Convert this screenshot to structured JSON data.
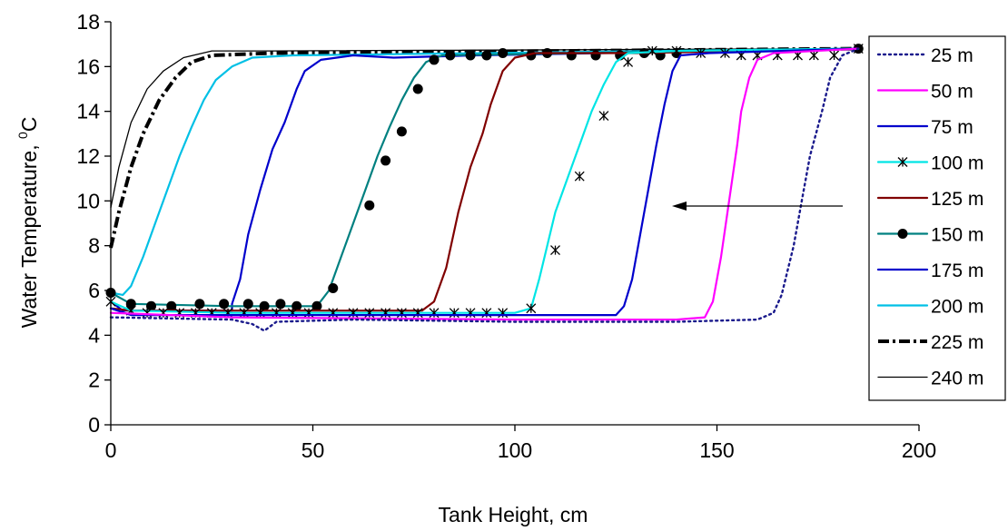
{
  "chart_data": {
    "type": "line",
    "title": "",
    "xlabel": "Tank Height, cm",
    "ylabel_main": "Water Temperature, ",
    "ylabel_sup": "0",
    "ylabel_unit": "C",
    "xlim": [
      0,
      200
    ],
    "ylim": [
      0,
      18
    ],
    "xticks": [
      "0",
      "50",
      "100",
      "150",
      "200"
    ],
    "yticks": [
      "0",
      "2",
      "4",
      "6",
      "8",
      "10",
      "12",
      "14",
      "16",
      "18"
    ],
    "grid": false,
    "legend_position": "right",
    "annotation": "arrow pointing left",
    "series": [
      {
        "name": "25 m",
        "color": "#1a1a8c",
        "dash": "dot",
        "marker": "none",
        "points": [
          [
            0,
            4.8
          ],
          [
            30,
            4.7
          ],
          [
            35,
            4.5
          ],
          [
            38,
            4.2
          ],
          [
            41,
            4.6
          ],
          [
            60,
            4.7
          ],
          [
            100,
            4.6
          ],
          [
            140,
            4.6
          ],
          [
            160,
            4.7
          ],
          [
            164,
            5.0
          ],
          [
            166,
            5.8
          ],
          [
            169,
            8
          ],
          [
            171,
            10
          ],
          [
            173,
            12
          ],
          [
            176,
            14
          ],
          [
            178,
            15.5
          ],
          [
            181,
            16.5
          ],
          [
            185,
            16.8
          ]
        ]
      },
      {
        "name": "50 m",
        "color": "#ff00ff",
        "dash": "solid",
        "marker": "none",
        "points": [
          [
            0,
            5.0
          ],
          [
            30,
            4.8
          ],
          [
            100,
            4.7
          ],
          [
            140,
            4.7
          ],
          [
            147,
            4.8
          ],
          [
            149,
            5.5
          ],
          [
            151,
            7.5
          ],
          [
            153,
            10
          ],
          [
            155,
            12.5
          ],
          [
            156,
            14
          ],
          [
            158,
            15.5
          ],
          [
            160,
            16.3
          ],
          [
            164,
            16.6
          ],
          [
            185,
            16.8
          ]
        ]
      },
      {
        "name": "75 m",
        "color": "#0000cc",
        "dash": "solid",
        "marker": "none",
        "points": [
          [
            0,
            5.2
          ],
          [
            5,
            4.9
          ],
          [
            30,
            4.9
          ],
          [
            80,
            4.9
          ],
          [
            110,
            4.9
          ],
          [
            125,
            4.9
          ],
          [
            127,
            5.3
          ],
          [
            129,
            6.5
          ],
          [
            131,
            8.5
          ],
          [
            133,
            10.5
          ],
          [
            135,
            12.5
          ],
          [
            137,
            14.3
          ],
          [
            139,
            15.8
          ],
          [
            141,
            16.5
          ],
          [
            148,
            16.6
          ],
          [
            185,
            16.8
          ]
        ]
      },
      {
        "name": "100 m",
        "color": "#00e5e5",
        "dash": "solid",
        "marker": "asterisk",
        "points": [
          [
            0,
            5.5
          ],
          [
            5,
            5.1
          ],
          [
            30,
            5.0
          ],
          [
            60,
            5.0
          ],
          [
            85,
            5.0
          ],
          [
            100,
            5.0
          ],
          [
            104,
            5.2
          ],
          [
            106,
            6.5
          ],
          [
            108,
            8
          ],
          [
            110,
            9.5
          ],
          [
            113,
            11
          ],
          [
            116,
            12.5
          ],
          [
            119,
            14
          ],
          [
            122,
            15.2
          ],
          [
            125,
            16.2
          ],
          [
            128,
            16.6
          ],
          [
            140,
            16.7
          ],
          [
            185,
            16.8
          ]
        ],
        "marker_points": [
          [
            0,
            5.5
          ],
          [
            5,
            5.1
          ],
          [
            9,
            5.0
          ],
          [
            13,
            5.0
          ],
          [
            17,
            5.0
          ],
          [
            21,
            5.0
          ],
          [
            25,
            5.0
          ],
          [
            29,
            5.0
          ],
          [
            33,
            5.0
          ],
          [
            37,
            5.0
          ],
          [
            41,
            5.0
          ],
          [
            45,
            5.0
          ],
          [
            49,
            5.0
          ],
          [
            55,
            5.0
          ],
          [
            60,
            5.0
          ],
          [
            64,
            5.0
          ],
          [
            68,
            5.0
          ],
          [
            72,
            5.0
          ],
          [
            76,
            5.0
          ],
          [
            80,
            5.0
          ],
          [
            85,
            5.0
          ],
          [
            89,
            5.0
          ],
          [
            93,
            5.0
          ],
          [
            97,
            5.0
          ],
          [
            104,
            5.2
          ],
          [
            110,
            7.8
          ],
          [
            116,
            11.1
          ],
          [
            122,
            13.8
          ],
          [
            128,
            16.2
          ],
          [
            134,
            16.7
          ],
          [
            140,
            16.7
          ],
          [
            146,
            16.6
          ],
          [
            152,
            16.6
          ],
          [
            156,
            16.5
          ],
          [
            160,
            16.5
          ],
          [
            165,
            16.5
          ],
          [
            170,
            16.5
          ],
          [
            174,
            16.5
          ],
          [
            179,
            16.5
          ],
          [
            185,
            16.8
          ]
        ]
      },
      {
        "name": "125 m",
        "color": "#800000",
        "dash": "solid",
        "marker": "none",
        "points": [
          [
            0,
            5.2
          ],
          [
            5,
            5.1
          ],
          [
            30,
            5.1
          ],
          [
            60,
            5.1
          ],
          [
            77,
            5.1
          ],
          [
            80,
            5.5
          ],
          [
            83,
            7
          ],
          [
            86,
            9.5
          ],
          [
            89,
            11.5
          ],
          [
            92,
            13
          ],
          [
            94,
            14.3
          ],
          [
            97,
            15.8
          ],
          [
            100,
            16.4
          ],
          [
            105,
            16.6
          ],
          [
            130,
            16.6
          ],
          [
            185,
            16.8
          ]
        ]
      },
      {
        "name": "150 m",
        "color": "#008080",
        "dash": "solid",
        "marker": "circle",
        "points": [
          [
            0,
            5.9
          ],
          [
            5,
            5.4
          ],
          [
            30,
            5.3
          ],
          [
            51,
            5.3
          ],
          [
            54,
            6.0
          ],
          [
            57,
            7.5
          ],
          [
            60,
            9
          ],
          [
            63,
            10.5
          ],
          [
            66,
            12
          ],
          [
            69,
            13.3
          ],
          [
            72,
            14.5
          ],
          [
            75,
            15.5
          ],
          [
            78,
            16.2
          ],
          [
            82,
            16.5
          ],
          [
            185,
            16.8
          ]
        ],
        "marker_points": [
          [
            0,
            5.9
          ],
          [
            5,
            5.4
          ],
          [
            10,
            5.3
          ],
          [
            15,
            5.3
          ],
          [
            22,
            5.4
          ],
          [
            28,
            5.4
          ],
          [
            34,
            5.4
          ],
          [
            38,
            5.3
          ],
          [
            42,
            5.4
          ],
          [
            46,
            5.3
          ],
          [
            51,
            5.3
          ],
          [
            55,
            6.1
          ],
          [
            64,
            9.8
          ],
          [
            68,
            11.8
          ],
          [
            72,
            13.1
          ],
          [
            76,
            15.0
          ],
          [
            80,
            16.3
          ],
          [
            84,
            16.5
          ],
          [
            89,
            16.5
          ],
          [
            93,
            16.5
          ],
          [
            97,
            16.6
          ],
          [
            104,
            16.5
          ],
          [
            108,
            16.6
          ],
          [
            114,
            16.5
          ],
          [
            120,
            16.5
          ],
          [
            126,
            16.5
          ],
          [
            132,
            16.6
          ],
          [
            136,
            16.5
          ],
          [
            140,
            16.6
          ],
          [
            185,
            16.8
          ]
        ]
      },
      {
        "name": "175 m",
        "color": "#0000cc",
        "dash": "solid",
        "marker": "none",
        "points": [
          [
            0,
            5.5
          ],
          [
            3,
            5.1
          ],
          [
            30,
            5.1
          ],
          [
            30,
            5.4
          ],
          [
            32,
            6.5
          ],
          [
            34,
            8.5
          ],
          [
            37,
            10.5
          ],
          [
            40,
            12.3
          ],
          [
            43,
            13.5
          ],
          [
            46,
            15
          ],
          [
            48,
            15.8
          ],
          [
            52,
            16.3
          ],
          [
            60,
            16.5
          ],
          [
            70,
            16.4
          ],
          [
            90,
            16.5
          ],
          [
            185,
            16.8
          ]
        ]
      },
      {
        "name": "200 m",
        "color": "#00c0e5",
        "dash": "solid",
        "marker": "none",
        "points": [
          [
            0,
            5.9
          ],
          [
            3,
            5.8
          ],
          [
            5,
            6.2
          ],
          [
            8,
            7.5
          ],
          [
            11,
            9
          ],
          [
            14,
            10.5
          ],
          [
            17,
            12
          ],
          [
            20,
            13.3
          ],
          [
            23,
            14.5
          ],
          [
            26,
            15.4
          ],
          [
            30,
            16
          ],
          [
            35,
            16.4
          ],
          [
            45,
            16.5
          ],
          [
            185,
            16.8
          ]
        ]
      },
      {
        "name": "225 m",
        "color": "#000000",
        "dash": "dashdot",
        "marker": "none",
        "points": [
          [
            0,
            7.9
          ],
          [
            2,
            9.5
          ],
          [
            5,
            11.5
          ],
          [
            8,
            13
          ],
          [
            12,
            14.5
          ],
          [
            16,
            15.5
          ],
          [
            20,
            16.2
          ],
          [
            25,
            16.5
          ],
          [
            40,
            16.6
          ],
          [
            185,
            16.8
          ]
        ]
      },
      {
        "name": "240 m",
        "color": "#000000",
        "dash": "thin",
        "marker": "none",
        "points": [
          [
            0,
            9.7
          ],
          [
            2,
            11.5
          ],
          [
            5,
            13.5
          ],
          [
            9,
            15
          ],
          [
            13,
            15.8
          ],
          [
            18,
            16.4
          ],
          [
            25,
            16.7
          ],
          [
            40,
            16.7
          ],
          [
            185,
            16.8
          ]
        ]
      }
    ]
  }
}
